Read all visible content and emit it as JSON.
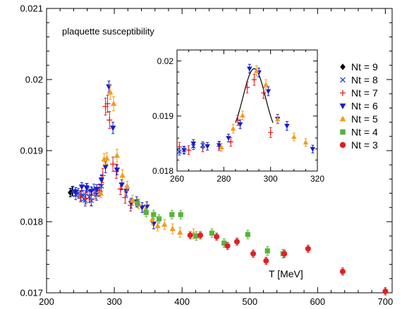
{
  "chart_data": [
    {
      "type": "scatter",
      "title": "",
      "annotation": "plaquette susceptibility",
      "xlabel": "T [MeV]",
      "ylabel": "",
      "xlim": [
        200,
        710
      ],
      "ylim": [
        0.017,
        0.021
      ],
      "xticks": [
        200,
        300,
        400,
        500,
        600,
        700
      ],
      "yticks": [
        0.017,
        0.018,
        0.019,
        0.02,
        0.021
      ],
      "xtick_labels": [
        "200",
        "300",
        "400",
        "500",
        "600",
        "700"
      ],
      "ytick_labels": [
        "0.017",
        "0.018",
        "0.019",
        "0.02",
        "0.021"
      ],
      "grid": false,
      "legend_position": "right of inset",
      "series": [
        {
          "name": "Nt = 9",
          "marker": "diamond",
          "color": "#000000",
          "x": [
            235,
            238
          ],
          "y": [
            0.01841,
            0.01843
          ],
          "err": [
            6e-05,
            6e-05
          ]
        },
        {
          "name": "Nt = 8",
          "marker": "cross",
          "color": "#1f3fcf",
          "x": [
            239,
            243,
            247,
            251,
            254,
            257,
            260,
            263,
            266,
            270,
            274,
            278,
            281
          ],
          "y": [
            0.01843,
            0.01838,
            0.0184,
            0.01836,
            0.01837,
            0.0183,
            0.01846,
            0.01835,
            0.0183,
            0.01845,
            0.01838,
            0.01845,
            0.0185
          ],
          "err": [
            7e-05,
            7e-05,
            7e-05,
            7e-05,
            7e-05,
            8e-05,
            8e-05,
            8e-05,
            8e-05,
            8e-05,
            8e-05,
            8e-05,
            8e-05
          ]
        },
        {
          "name": "Nt = 7",
          "marker": "plus",
          "color": "#e02020",
          "x": [
            250,
            258,
            266,
            272,
            278,
            283,
            287,
            290,
            293,
            298,
            303,
            309,
            316,
            324
          ],
          "y": [
            0.01836,
            0.01833,
            0.01831,
            0.0184,
            0.01844,
            0.01865,
            0.01962,
            0.01966,
            0.01943,
            0.01881,
            0.01871,
            0.01846,
            0.01834,
            0.01823
          ],
          "err": [
            8e-05,
            8e-05,
            8e-05,
            8e-05,
            8e-05,
            0.0001,
            0.00012,
            0.00012,
            0.00012,
            0.0001,
            0.0001,
            8e-05,
            8e-05,
            8e-05
          ]
        },
        {
          "name": "Nt = 6",
          "marker": "triangle-down",
          "color": "#1a1acf",
          "x": [
            243,
            252,
            259,
            266,
            274,
            281,
            287,
            292,
            298,
            304,
            311,
            318,
            325,
            333,
            341,
            348,
            358
          ],
          "y": [
            0.01842,
            0.01849,
            0.01848,
            0.01843,
            0.01846,
            0.01859,
            0.01877,
            0.0199,
            0.01932,
            0.01873,
            0.01852,
            0.01843,
            0.01826,
            0.01828,
            0.0182,
            0.01821,
            0.01797
          ],
          "err": [
            6e-05,
            6e-05,
            6e-05,
            6e-05,
            6e-05,
            7e-05,
            8e-05,
            8e-05,
            8e-05,
            7e-05,
            7e-05,
            7e-05,
            7e-05,
            7e-05,
            7e-05,
            7e-05,
            7e-05
          ]
        },
        {
          "name": "Nt = 5",
          "marker": "triangle-up",
          "color": "#f39c1a",
          "x": [
            280,
            285,
            289,
            294,
            299,
            304,
            312,
            319,
            327,
            336,
            346,
            356,
            364,
            374,
            386,
            397,
            417
          ],
          "y": [
            0.0184,
            0.01888,
            0.01889,
            0.01982,
            0.01966,
            0.01893,
            0.01865,
            0.0185,
            0.0183,
            0.01825,
            0.01817,
            0.01803,
            0.01794,
            0.01796,
            0.0179,
            0.01785,
            0.01783
          ],
          "err": [
            6e-05,
            8e-05,
            8e-05,
            0.0001,
            0.0001,
            9e-05,
            8e-05,
            7e-05,
            7e-05,
            7e-05,
            7e-05,
            7e-05,
            7e-05,
            7e-05,
            7e-05,
            7e-05,
            7e-05
          ]
        },
        {
          "name": "Nt = 4",
          "marker": "square",
          "color": "#58b33a",
          "x": [
            334,
            347,
            358,
            366,
            385,
            398,
            421,
            444,
            462,
            497,
            526,
            549
          ],
          "y": [
            0.01826,
            0.01813,
            0.0181,
            0.01804,
            0.0181,
            0.0181,
            0.0178,
            0.01784,
            0.0177,
            0.01782,
            0.01759,
            0.01755
          ],
          "err": [
            6e-05,
            6e-05,
            6e-05,
            6e-05,
            6e-05,
            6e-05,
            6e-05,
            6e-05,
            6e-05,
            6e-05,
            6e-05,
            6e-05
          ]
        },
        {
          "name": "Nt = 3",
          "marker": "circle",
          "color": "#e02020",
          "x": [
            412,
            427,
            451,
            467,
            481,
            505,
            524,
            551,
            586,
            637,
            700
          ],
          "y": [
            0.01781,
            0.01781,
            0.01779,
            0.01766,
            0.01772,
            0.01755,
            0.01745,
            0.01755,
            0.01762,
            0.0173,
            0.01702
          ],
          "err": [
            5e-05,
            5e-05,
            5e-05,
            5e-05,
            5e-05,
            5e-05,
            5e-05,
            5e-05,
            5e-05,
            5e-05,
            5e-05
          ]
        }
      ]
    },
    {
      "type": "scatter",
      "title": "",
      "inset": true,
      "xlabel": "",
      "ylabel": "",
      "xlim": [
        260,
        320
      ],
      "ylim": [
        0.018,
        0.0202
      ],
      "xticks": [
        260,
        280,
        300,
        320
      ],
      "yticks": [
        0.018,
        0.019,
        0.02
      ],
      "xtick_labels": [
        "260",
        "280",
        "300",
        "320"
      ],
      "ytick_labels": [
        "0.018",
        "0.019",
        "0.02"
      ],
      "fit_curve": {
        "color": "#000000",
        "x_range": [
          285,
          301
        ],
        "peak_x": 293,
        "peak_y": 0.01986,
        "base_y": 0.01855,
        "width": 4.8
      },
      "series": [
        {
          "name": "Nt = 7",
          "marker": "plus",
          "color": "#e02020",
          "x": [
            261,
            265,
            271,
            278,
            283,
            286,
            290,
            293,
            297,
            300
          ],
          "y": [
            0.01844,
            0.01838,
            0.01843,
            0.01845,
            0.01853,
            0.01892,
            0.01952,
            0.01966,
            0.01942,
            0.0187
          ],
          "err": [
            8e-05,
            8e-05,
            8e-05,
            8e-05,
            8e-05,
            9e-05,
            0.0001,
            0.0001,
            0.0001,
            9e-05
          ]
        },
        {
          "name": "Nt = 8",
          "marker": "cross",
          "color": "#1f3fcf",
          "x": [
            261,
            263,
            267,
            271
          ],
          "y": [
            0.01835,
            0.01838,
            0.01845,
            0.01847
          ],
          "err": [
            6e-05,
            6e-05,
            6e-05,
            6e-05
          ]
        },
        {
          "name": "Nt = 6",
          "marker": "triangle-down",
          "color": "#1a1acf",
          "x": [
            263,
            267,
            273,
            278,
            282,
            287,
            291,
            295,
            299,
            303,
            307,
            318
          ],
          "y": [
            0.01838,
            0.0185,
            0.01845,
            0.01847,
            0.0186,
            0.01885,
            0.01986,
            0.01979,
            0.01945,
            0.01895,
            0.01882,
            0.0184
          ],
          "err": [
            7e-05,
            7e-05,
            7e-05,
            7e-05,
            7e-05,
            8e-05,
            8e-05,
            8e-05,
            8e-05,
            8e-05,
            8e-05,
            7e-05
          ]
        },
        {
          "name": "Nt = 5",
          "marker": "triangle-up",
          "color": "#f39c1a",
          "x": [
            279,
            284,
            288,
            294,
            298,
            303,
            310,
            315
          ],
          "y": [
            0.01843,
            0.01877,
            0.01901,
            0.01982,
            0.01957,
            0.01894,
            0.01862,
            0.01852
          ],
          "err": [
            7e-05,
            8e-05,
            8e-05,
            9e-05,
            9e-05,
            8e-05,
            7e-05,
            7e-05
          ]
        }
      ]
    }
  ]
}
